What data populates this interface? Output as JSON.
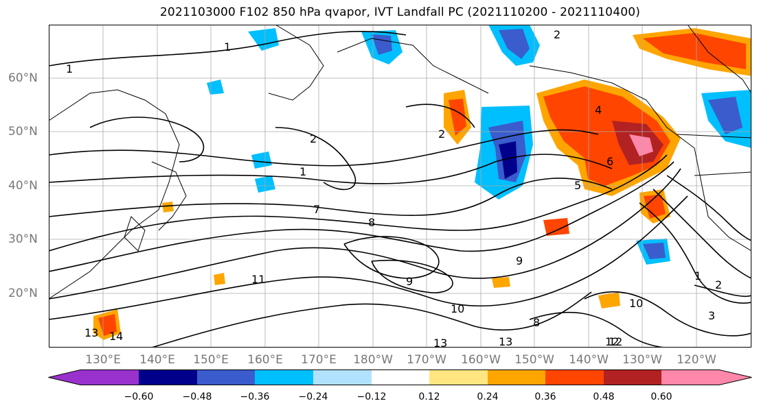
{
  "title": "2021103000 F102 850 hPa qvapor, IVT Landfall PC (2021110200 - 2021110400)",
  "lat_labels": [
    "60°N",
    "50°N",
    "40°N",
    "30°N",
    "20°N"
  ],
  "lon_labels": [
    "130°E",
    "140°E",
    "150°E",
    "160°E",
    "170°E",
    "180°W",
    "170°W",
    "160°W",
    "150°W",
    "140°W",
    "130°W",
    "120°W"
  ],
  "contour_labels": [
    "1",
    "1",
    "1",
    "2",
    "2",
    "2",
    "4",
    "5",
    "6",
    "7",
    "8",
    "9",
    "10",
    "11",
    "13",
    "14",
    "12",
    "13",
    "1",
    "2",
    "3",
    "8",
    "9",
    "10",
    "12",
    "13"
  ],
  "colorbar": {
    "colors": [
      "#9932cc",
      "#00008b",
      "#3a5ccc",
      "#00bfff",
      "#b0e2ff",
      "#ffffff",
      "#ffe680",
      "#ffa500",
      "#ff4500",
      "#b22222",
      "#ff88aa"
    ],
    "tick_labels": [
      "−0.60",
      "−0.48",
      "−0.36",
      "−0.24",
      "−0.12",
      "0.12",
      "0.24",
      "0.36",
      "0.48",
      "0.60"
    ]
  }
}
